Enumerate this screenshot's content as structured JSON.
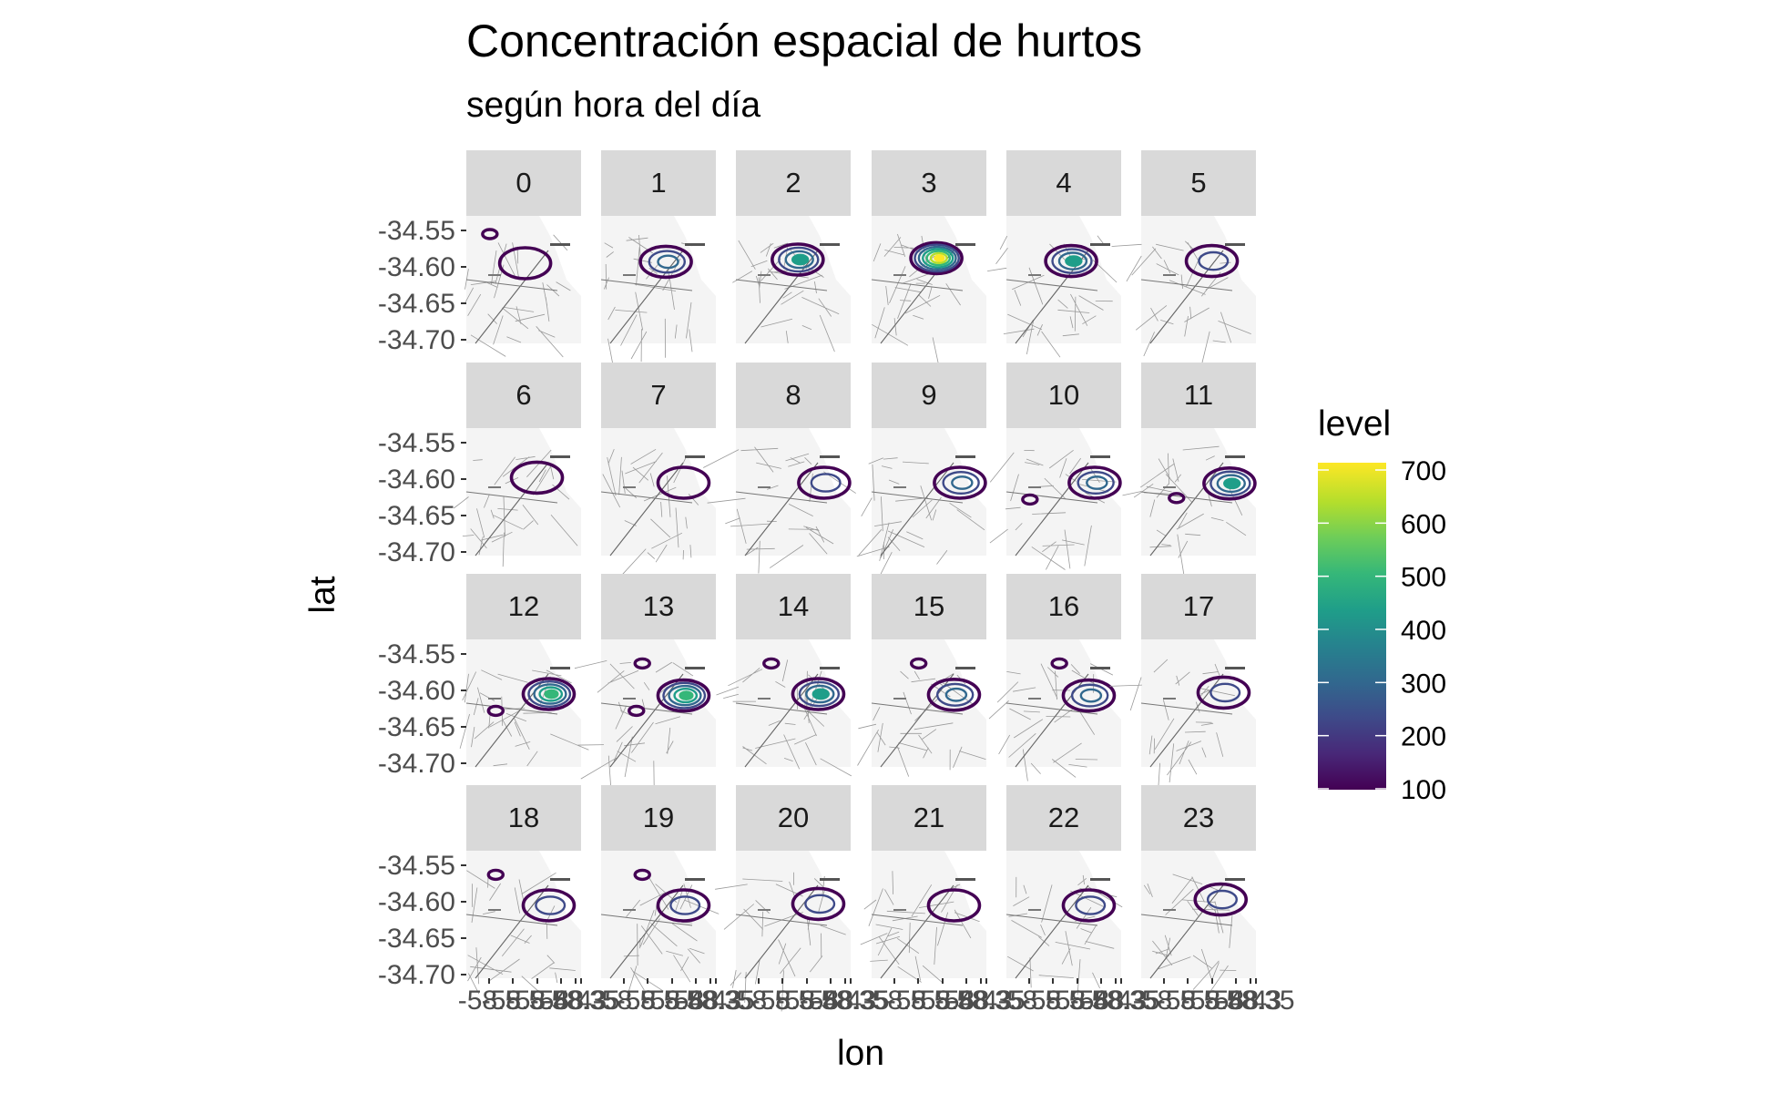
{
  "title": "Concentración espacial de hurtos",
  "subtitle": "según hora del día",
  "chart_data": {
    "type": "density-contour (faceted map)",
    "facet_by": "hour",
    "facets": [
      "0",
      "1",
      "2",
      "3",
      "4",
      "5",
      "6",
      "7",
      "8",
      "9",
      "10",
      "11",
      "12",
      "13",
      "14",
      "15",
      "16",
      "17",
      "18",
      "19",
      "20",
      "21",
      "22",
      "23"
    ],
    "ncol": 6,
    "nrow": 4,
    "xlabel": "lon",
    "ylabel": "lat",
    "y_ticks": [
      "-34.55",
      "-34.60",
      "-34.65",
      "-34.70"
    ],
    "y_tick_values": [
      -34.55,
      -34.6,
      -34.65,
      -34.7
    ],
    "x_ticks_visible_text": "-58.5-58.5-58.4-58.4-58.3-58.35",
    "x_tick_values": [
      -58.5,
      -58.45,
      -58.4,
      -58.35
    ],
    "legend": {
      "title": "level",
      "labels": [
        "700",
        "600",
        "500",
        "400",
        "300",
        "200",
        "100"
      ],
      "values": [
        700,
        600,
        500,
        400,
        300,
        200,
        100
      ],
      "colormap": "viridis",
      "colors": [
        "#440154",
        "#482878",
        "#3e4a89",
        "#31688e",
        "#26828e",
        "#1f9e89",
        "#35b779",
        "#6dcd59",
        "#b4de2c",
        "#fde725"
      ]
    },
    "hotspots": [
      {
        "hour": "0",
        "center": [
          -58.43,
          -34.595
        ],
        "peak": 150,
        "secondary": [
          [
            -58.49,
            -34.555
          ]
        ]
      },
      {
        "hour": "1",
        "center": [
          -58.42,
          -34.593
        ],
        "peak": 320
      },
      {
        "hour": "2",
        "center": [
          -58.425,
          -34.59
        ],
        "peak": 420
      },
      {
        "hour": "3",
        "center": [
          -58.42,
          -34.588
        ],
        "peak": 700
      },
      {
        "hour": "4",
        "center": [
          -58.42,
          -34.592
        ],
        "peak": 450
      },
      {
        "hour": "5",
        "center": [
          -58.41,
          -34.592
        ],
        "peak": 200
      },
      {
        "hour": "6",
        "center": [
          -58.41,
          -34.598
        ],
        "peak": 150
      },
      {
        "hour": "7",
        "center": [
          -58.39,
          -34.605
        ],
        "peak": 130
      },
      {
        "hour": "8",
        "center": [
          -58.38,
          -34.605
        ],
        "peak": 250
      },
      {
        "hour": "9",
        "center": [
          -58.38,
          -34.605
        ],
        "peak": 300
      },
      {
        "hour": "10",
        "center": [
          -58.38,
          -34.605
        ],
        "peak": 320,
        "secondary": [
          [
            -58.49,
            -34.628
          ]
        ]
      },
      {
        "hour": "11",
        "center": [
          -58.38,
          -34.606
        ],
        "peak": 450,
        "secondary": [
          [
            -58.47,
            -34.626
          ]
        ]
      },
      {
        "hour": "12",
        "center": [
          -58.39,
          -34.605
        ],
        "peak": 520,
        "secondary": [
          [
            -58.48,
            -34.628
          ]
        ]
      },
      {
        "hour": "13",
        "center": [
          -58.39,
          -34.607
        ],
        "peak": 560,
        "secondary": [
          [
            -58.46,
            -34.563
          ],
          [
            -58.47,
            -34.628
          ]
        ]
      },
      {
        "hour": "14",
        "center": [
          -58.39,
          -34.605
        ],
        "peak": 480,
        "secondary": [
          [
            -58.47,
            -34.563
          ]
        ]
      },
      {
        "hour": "15",
        "center": [
          -58.39,
          -34.606
        ],
        "peak": 380,
        "secondary": [
          [
            -58.45,
            -34.563
          ]
        ]
      },
      {
        "hour": "16",
        "center": [
          -58.39,
          -34.607
        ],
        "peak": 330,
        "secondary": [
          [
            -58.44,
            -34.563
          ]
        ]
      },
      {
        "hour": "17",
        "center": [
          -58.39,
          -34.603
        ],
        "peak": 280
      },
      {
        "hour": "18",
        "center": [
          -58.39,
          -34.605
        ],
        "peak": 260,
        "secondary": [
          [
            -58.48,
            -34.563
          ]
        ]
      },
      {
        "hour": "19",
        "center": [
          -58.39,
          -34.605
        ],
        "peak": 240,
        "secondary": [
          [
            -58.46,
            -34.563
          ]
        ]
      },
      {
        "hour": "20",
        "center": [
          -58.39,
          -34.603
        ],
        "peak": 200
      },
      {
        "hour": "21",
        "center": [
          -58.39,
          -34.605
        ],
        "peak": 180
      },
      {
        "hour": "22",
        "center": [
          -58.39,
          -34.605
        ],
        "peak": 200
      },
      {
        "hour": "23",
        "center": [
          -58.395,
          -34.597
        ],
        "peak": 230
      }
    ]
  }
}
